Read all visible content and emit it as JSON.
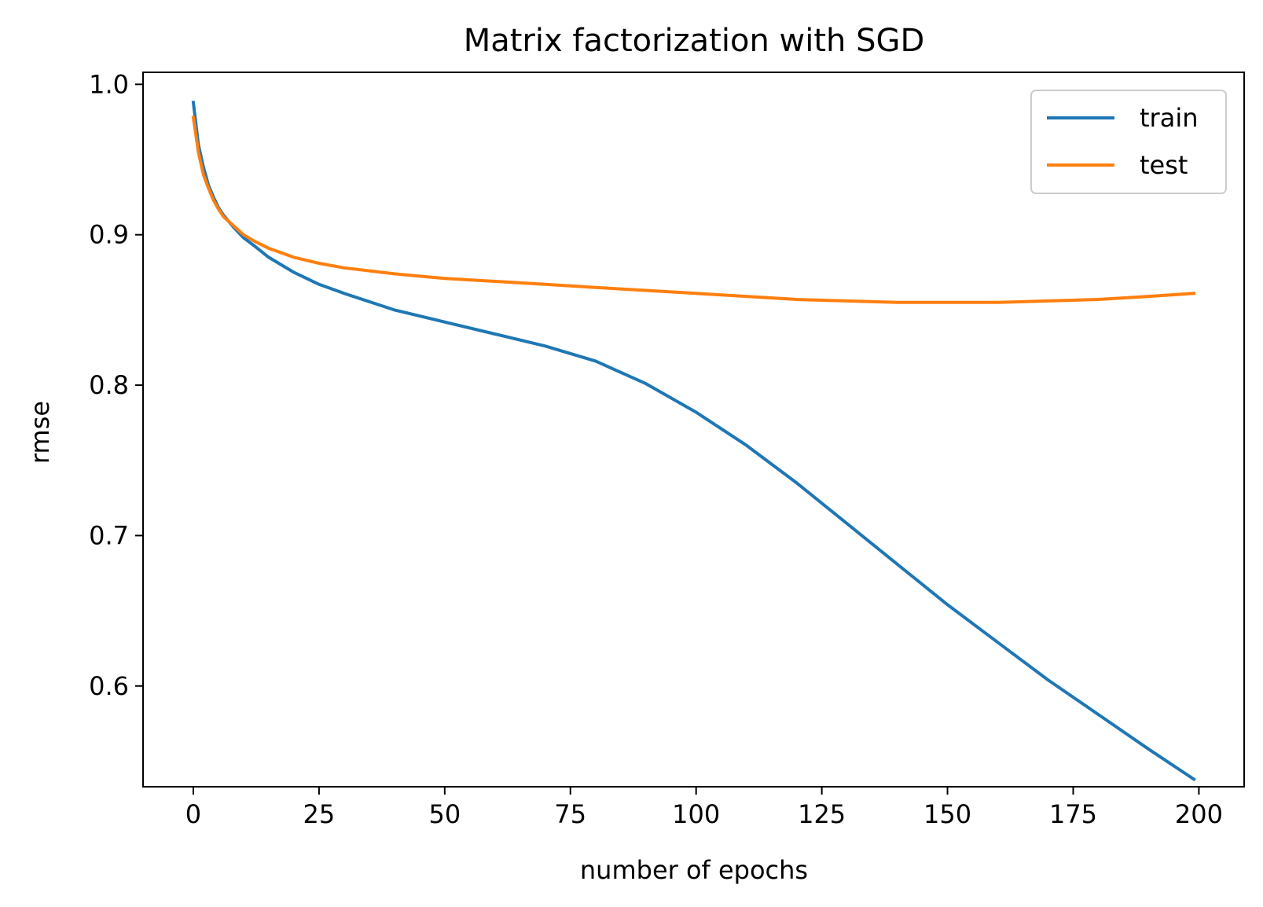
{
  "chart_data": {
    "type": "line",
    "title": "Matrix factorization with SGD",
    "xlabel": "number of epochs",
    "ylabel": "rmse",
    "xlim": [
      -10,
      209
    ],
    "ylim": [
      0.533,
      1.008
    ],
    "xticks": [
      0,
      25,
      50,
      75,
      100,
      125,
      150,
      175,
      200
    ],
    "yticks": [
      0.6,
      0.7,
      0.8,
      0.9,
      1.0
    ],
    "ytick_labels": [
      "0.6",
      "0.7",
      "0.8",
      "0.9",
      "1.0"
    ],
    "grid": false,
    "legend_position": "top-right",
    "series": [
      {
        "name": "train",
        "color": "#1f77b4",
        "x": [
          0,
          1,
          2,
          3,
          4,
          5,
          6,
          8,
          10,
          12,
          15,
          20,
          25,
          30,
          40,
          50,
          60,
          70,
          80,
          90,
          100,
          110,
          120,
          130,
          140,
          150,
          160,
          170,
          180,
          190,
          199
        ],
        "y": [
          0.988,
          0.96,
          0.945,
          0.933,
          0.925,
          0.918,
          0.913,
          0.905,
          0.898,
          0.893,
          0.885,
          0.875,
          0.867,
          0.861,
          0.85,
          0.842,
          0.834,
          0.826,
          0.816,
          0.801,
          0.782,
          0.76,
          0.735,
          0.708,
          0.681,
          0.654,
          0.629,
          0.604,
          0.581,
          0.558,
          0.538
        ]
      },
      {
        "name": "test",
        "color": "#ff7f0e",
        "x": [
          0,
          1,
          2,
          3,
          4,
          5,
          6,
          8,
          10,
          12,
          15,
          20,
          25,
          30,
          40,
          50,
          60,
          70,
          80,
          90,
          100,
          110,
          120,
          130,
          140,
          150,
          160,
          170,
          180,
          190,
          199
        ],
        "y": [
          0.978,
          0.955,
          0.94,
          0.931,
          0.923,
          0.917,
          0.912,
          0.906,
          0.9,
          0.896,
          0.891,
          0.885,
          0.881,
          0.878,
          0.874,
          0.871,
          0.869,
          0.867,
          0.865,
          0.863,
          0.861,
          0.859,
          0.857,
          0.856,
          0.855,
          0.855,
          0.855,
          0.856,
          0.857,
          0.859,
          0.861
        ]
      }
    ]
  }
}
